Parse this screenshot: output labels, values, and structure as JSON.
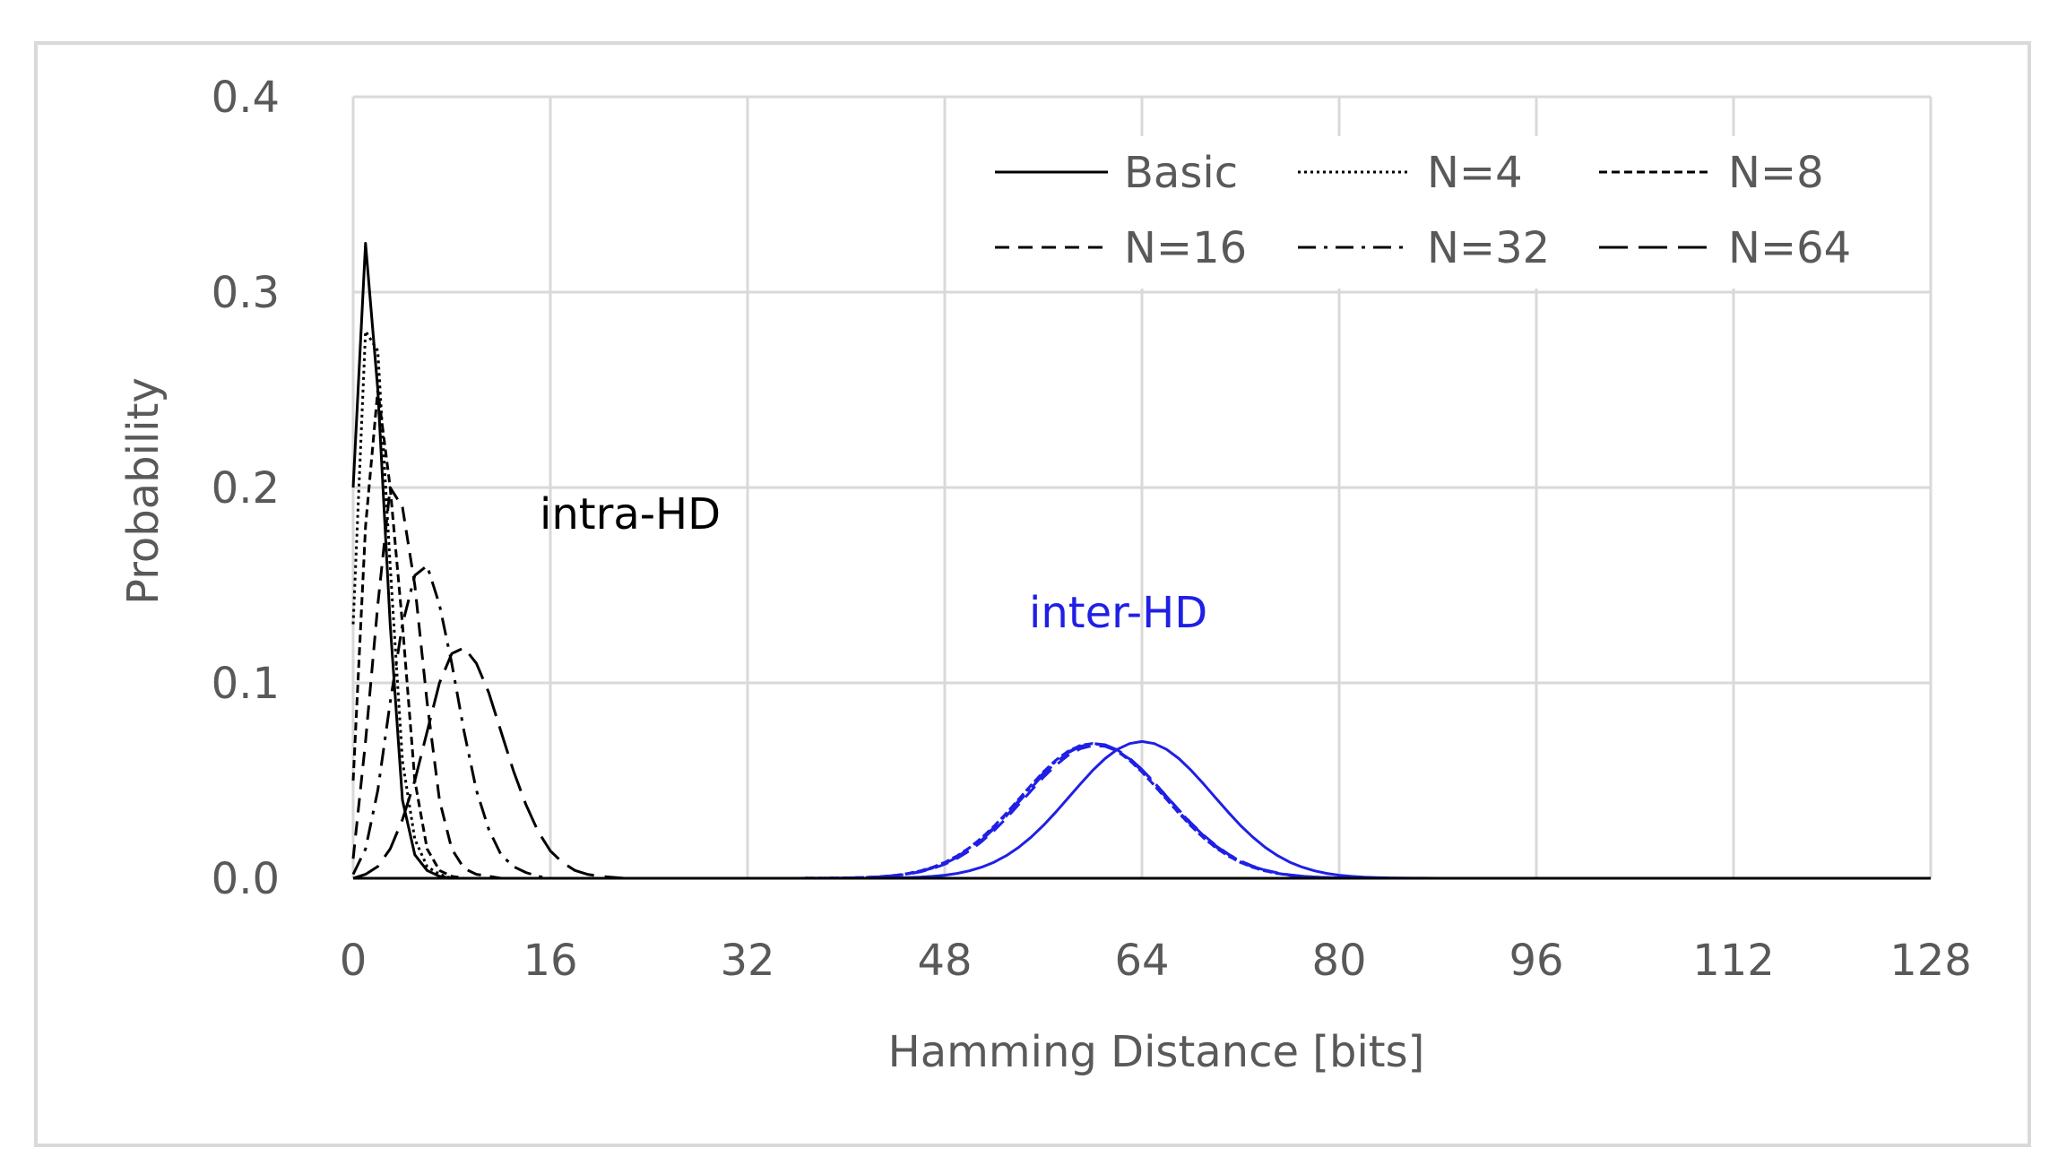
{
  "chart_data": {
    "type": "line",
    "xlabel": "Hamming Distance [bits]",
    "ylabel": "Probability",
    "xlim": [
      0,
      128
    ],
    "ylim": [
      0,
      0.4
    ],
    "xticks": [
      "0",
      "16",
      "32",
      "48",
      "64",
      "80",
      "96",
      "112",
      "128"
    ],
    "yticks": [
      "0.0",
      "0.1",
      "0.2",
      "0.3",
      "0.4"
    ],
    "grid": true,
    "legend_position": "top-right",
    "annotations": [
      {
        "text": "intra-HD",
        "color": "#000000"
      },
      {
        "text": "inter-HD",
        "color": "#1f1fe6"
      }
    ],
    "intra_series": [
      {
        "name": "Basic",
        "style": "solid",
        "x": [
          0,
          1,
          2,
          3,
          4,
          5,
          6,
          7,
          8,
          9
        ],
        "y": [
          0.2,
          0.325,
          0.25,
          0.13,
          0.04,
          0.012,
          0.004,
          0.001,
          0,
          0
        ]
      },
      {
        "name": "N=4",
        "style": "dotted",
        "x": [
          0,
          1,
          2,
          3,
          4,
          5,
          6,
          7,
          8,
          9,
          10
        ],
        "y": [
          0.13,
          0.28,
          0.27,
          0.16,
          0.06,
          0.02,
          0.006,
          0.002,
          0,
          0,
          0
        ]
      },
      {
        "name": "N=8",
        "style": "dashdense",
        "x": [
          0,
          1,
          2,
          3,
          4,
          5,
          6,
          7,
          8,
          9,
          10,
          11
        ],
        "y": [
          0.05,
          0.18,
          0.25,
          0.2,
          0.13,
          0.05,
          0.015,
          0.004,
          0.001,
          0,
          0,
          0
        ]
      },
      {
        "name": "N=16",
        "style": "dashed",
        "x": [
          0,
          1,
          2,
          3,
          4,
          5,
          6,
          7,
          8,
          9,
          10,
          11,
          12,
          13
        ],
        "y": [
          0.01,
          0.07,
          0.14,
          0.2,
          0.19,
          0.15,
          0.09,
          0.04,
          0.015,
          0.005,
          0.002,
          0.001,
          0,
          0
        ]
      },
      {
        "name": "N=32",
        "style": "dashdot",
        "x": [
          0,
          1,
          2,
          3,
          4,
          5,
          6,
          7,
          8,
          9,
          10,
          11,
          12,
          13,
          14,
          15,
          16,
          17
        ],
        "y": [
          0.002,
          0.015,
          0.045,
          0.09,
          0.13,
          0.155,
          0.16,
          0.14,
          0.11,
          0.075,
          0.045,
          0.025,
          0.012,
          0.006,
          0.003,
          0.001,
          0,
          0
        ]
      },
      {
        "name": "N=64",
        "style": "longdash",
        "x": [
          0,
          1,
          2,
          3,
          4,
          5,
          6,
          7,
          8,
          9,
          10,
          11,
          12,
          13,
          14,
          15,
          16,
          17,
          18,
          19,
          20,
          22,
          24
        ],
        "y": [
          0,
          0.002,
          0.006,
          0.015,
          0.03,
          0.05,
          0.075,
          0.1,
          0.115,
          0.118,
          0.11,
          0.095,
          0.075,
          0.055,
          0.038,
          0.024,
          0.014,
          0.008,
          0.004,
          0.002,
          0.001,
          0,
          0
        ]
      }
    ],
    "inter_series": [
      {
        "name": "Basic",
        "style": "solid",
        "mean": 64,
        "sd": 5.8,
        "peak": 0.07
      },
      {
        "name": "N=4",
        "style": "dotted",
        "mean": 60,
        "sd": 5.8,
        "peak": 0.069
      },
      {
        "name": "N=8",
        "style": "dashdense",
        "mean": 60,
        "sd": 5.8,
        "peak": 0.069
      },
      {
        "name": "N=16",
        "style": "dashed",
        "mean": 60.3,
        "sd": 5.8,
        "peak": 0.068
      },
      {
        "name": "N=32",
        "style": "dashdot",
        "mean": 60.1,
        "sd": 5.8,
        "peak": 0.069
      },
      {
        "name": "N=64",
        "style": "longdash",
        "mean": 60.2,
        "sd": 5.8,
        "peak": 0.069
      }
    ],
    "colors": {
      "intra": "#000000",
      "inter": "#1f1fe6",
      "grid": "#d9d9d9",
      "frame": "#d9d9d9",
      "text": "#595959"
    }
  }
}
